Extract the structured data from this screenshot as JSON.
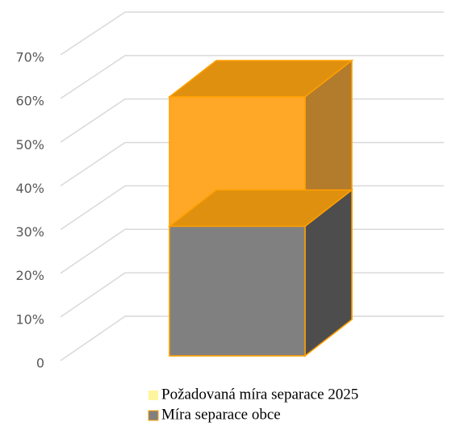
{
  "chart_data": {
    "type": "bar3d",
    "categories": [
      null
    ],
    "series": [
      {
        "name": "Požadovaná míra separace 2025",
        "color": "#fff59d",
        "values": [
          60
        ]
      },
      {
        "name": "Míra separace obce",
        "color": "#808080",
        "values": [
          30
        ]
      }
    ],
    "ylim": [
      0,
      70
    ],
    "yticks": [
      0,
      {
        "value": 10,
        "label": "10%"
      },
      {
        "value": 20,
        "label": "20%"
      },
      {
        "value": 30,
        "label": "30%"
      },
      {
        "value": 40,
        "label": "40%"
      },
      {
        "value": 50,
        "label": "50%"
      },
      {
        "value": 60,
        "label": "60%"
      },
      {
        "value": 70,
        "label": "70%"
      }
    ],
    "grid": true
  }
}
